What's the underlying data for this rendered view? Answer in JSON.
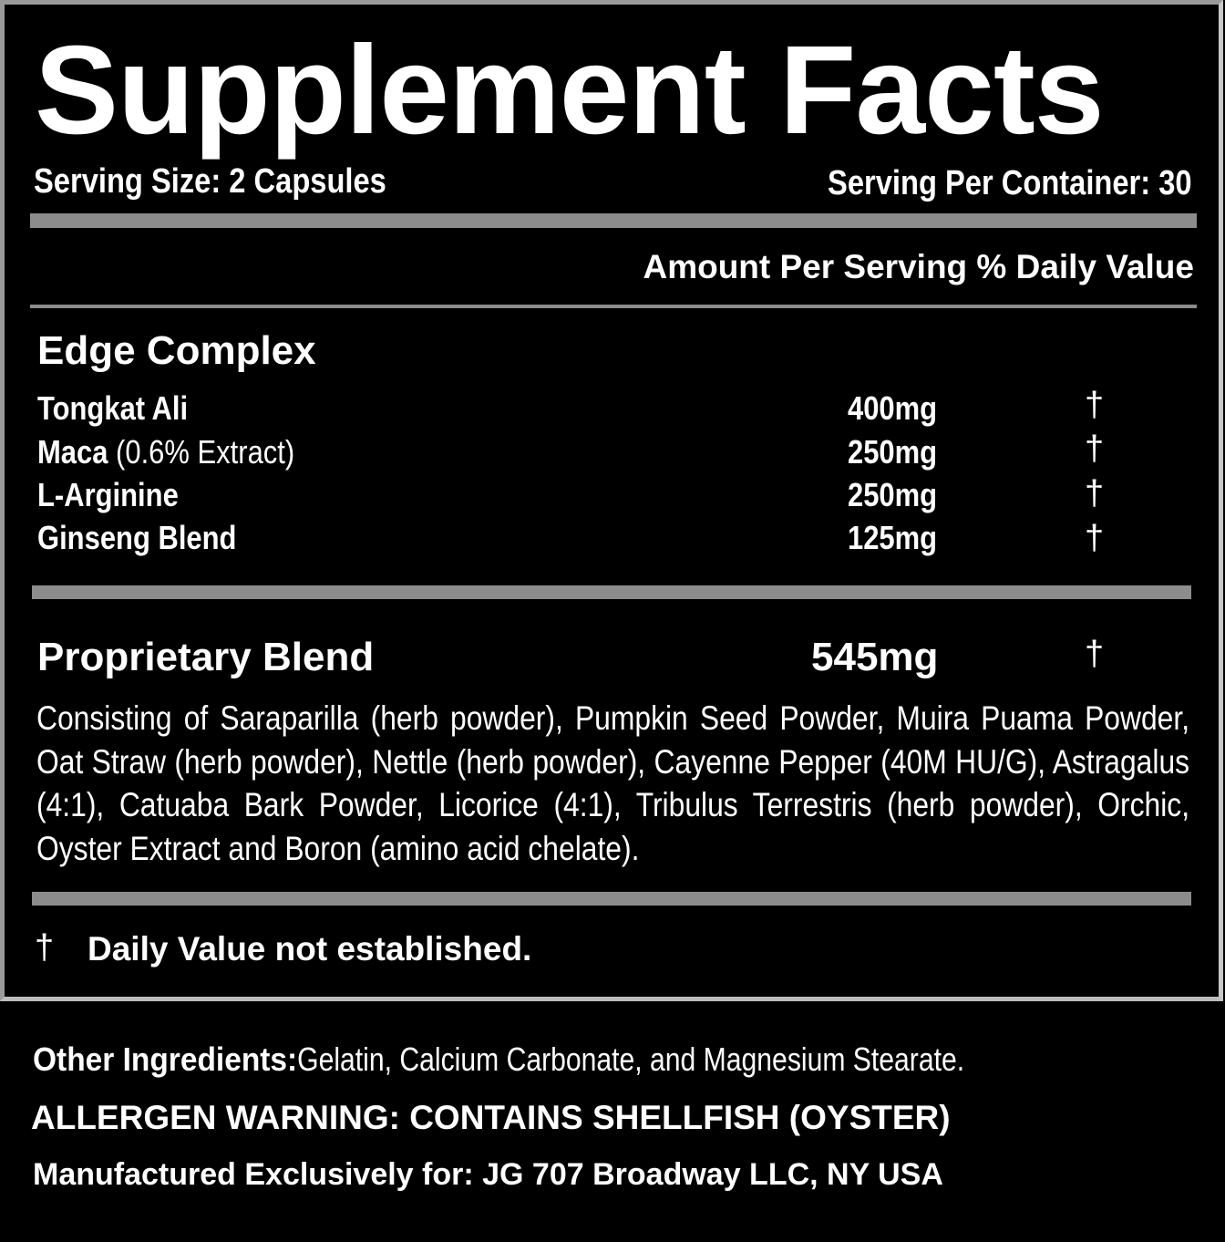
{
  "title": "Supplement Facts",
  "serving_size": "Serving Size: 2 Capsules",
  "servings_per_container": "Serving Per Container: 30",
  "column_header": "Amount Per Serving % Daily Value",
  "edge_complex": {
    "heading": "Edge Complex",
    "rows": [
      {
        "name": "Tongkat Ali",
        "note": "",
        "amount": "400mg",
        "dv": "†"
      },
      {
        "name": "Maca",
        "note": " (0.6% Extract)",
        "amount": "250mg",
        "dv": "†"
      },
      {
        "name": "L-Arginine",
        "note": "",
        "amount": "250mg",
        "dv": "†"
      },
      {
        "name": "Ginseng Blend",
        "note": "",
        "amount": "125mg",
        "dv": "†"
      }
    ]
  },
  "proprietary_blend": {
    "heading": "Proprietary Blend",
    "amount": "545mg",
    "dv": "†",
    "description": "Consisting of Saraparilla (herb powder), Pumpkin Seed Powder, Muira Puama Powder, Oat Straw (herb powder), Nettle (herb powder), Cayenne Pepper (40M HU/G), Astragalus (4:1), Catuaba Bark Powder, Licorice (4:1), Tribulus Terrestris (herb powder), Orchic, Oyster Extract and Boron (amino acid chelate)."
  },
  "footnote": {
    "symbol": "†",
    "text": "Daily Value not established."
  },
  "other_ingredients": {
    "label": "Other Ingredients:",
    "text": " Gelatin, Calcium Carbonate, and Magnesium Stearate."
  },
  "allergen_warning": "ALLERGEN WARNING: CONTAINS SHELLFISH (OYSTER)",
  "manufacturer": "Manufactured Exclusively for: JG 707 Broadway LLC, NY USA",
  "colors": {
    "background": "#000000",
    "text": "#ffffff",
    "rule": "#8c8c8c"
  }
}
